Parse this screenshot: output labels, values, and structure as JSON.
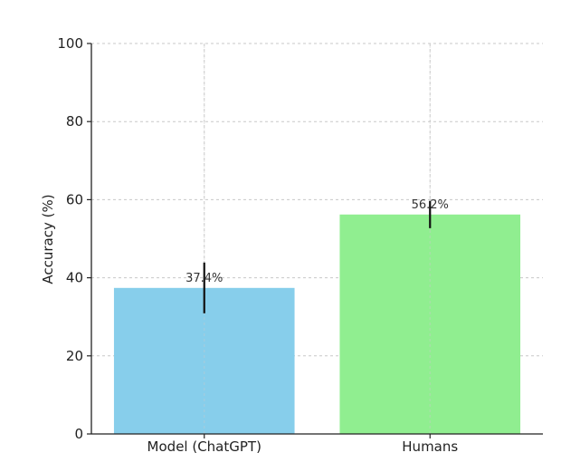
{
  "chart_data": {
    "type": "bar",
    "title": "",
    "xlabel": "",
    "ylabel": "Accuracy (%)",
    "ylim": [
      0,
      100
    ],
    "yticks": [
      0,
      20,
      40,
      60,
      80,
      100
    ],
    "grid": true,
    "categories": [
      "Model (ChatGPT)",
      "Humans"
    ],
    "values": [
      37.4,
      56.2
    ],
    "errors": [
      6.5,
      3.5
    ],
    "data_labels": [
      "37.4%",
      "56.2%"
    ],
    "colors": [
      "#87ceeb",
      "#90ee90"
    ]
  }
}
